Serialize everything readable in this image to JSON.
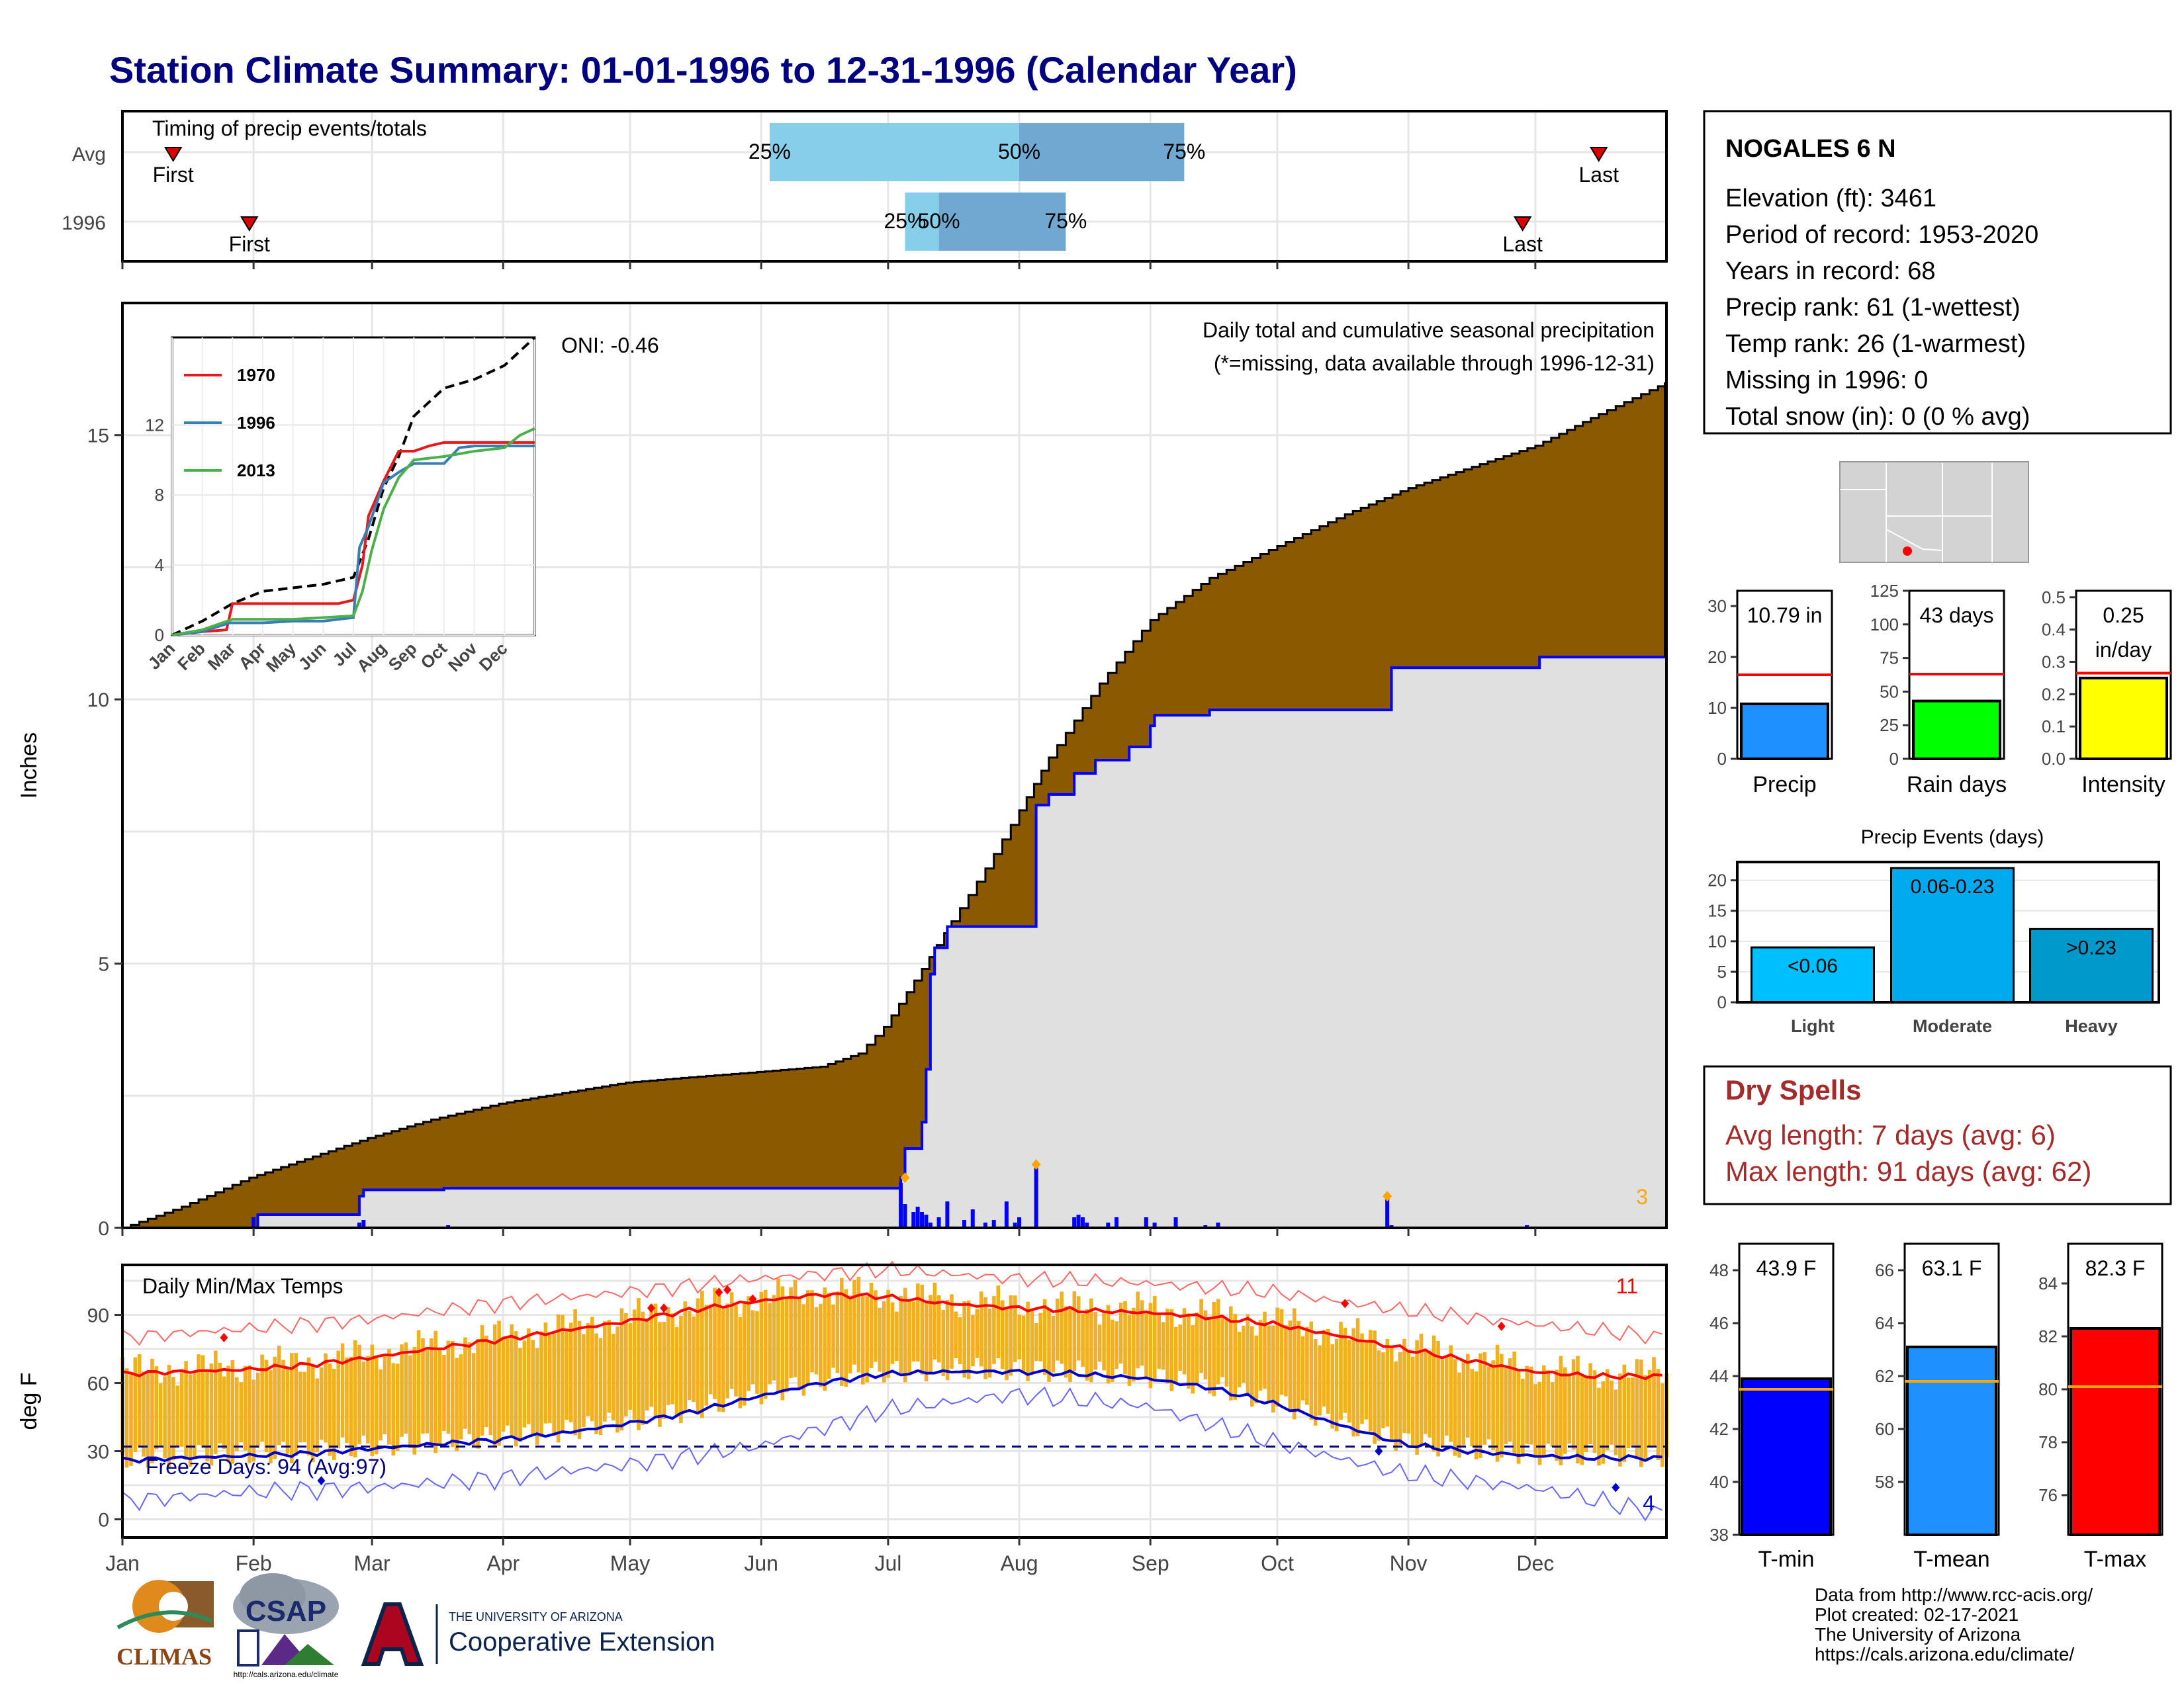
{
  "title": "Station Climate Summary: 01-01-1996 to 12-31-1996 (Calendar Year)",
  "colors": {
    "title": "#000080",
    "precip_fill": "#8B5A00",
    "observed_fill": "#e0e0e0",
    "observed_line": "#0000ff",
    "quartile_light": "#87ceeb",
    "quartile_dark": "#6fa8d0",
    "temp_bar": "#f0b020",
    "tmax": "#ff0000",
    "tmin": "#0000cc",
    "dry_spell_text": "#a52a2a",
    "missing_note": "#ff0000",
    "extreme_count": "#ffa500"
  },
  "months": [
    "Jan",
    "Feb",
    "Mar",
    "Apr",
    "May",
    "Jun",
    "Jul",
    "Aug",
    "Sep",
    "Oct",
    "Nov",
    "Dec"
  ],
  "timing": {
    "title": "Timing of precip events/totals",
    "rows": [
      {
        "label": "Avg",
        "first_label": "First",
        "last_label": "Last",
        "first_doy": 13,
        "last_doy": 350,
        "q25": 154,
        "q50": 213,
        "q75": 252,
        "q25_label": "25%",
        "q50_label": "50%",
        "q75_label": "75%"
      },
      {
        "label": "1996",
        "first_label": "First",
        "last_label": "Last",
        "first_doy": 31,
        "last_doy": 332,
        "q25": 186,
        "q50": 194,
        "q75": 224,
        "q25_label": "25%",
        "q50_label": "50%",
        "q75_label": "75%"
      }
    ]
  },
  "precip_panel": {
    "ylabel": "Inches",
    "yticks": [
      0,
      5,
      10,
      15
    ],
    "header": "Daily total and cumulative seasonal precipitation",
    "missing_note": "(*=missing, data available through 1996-12-31)",
    "oni": "ONI: -0.46",
    "extreme_count": "3"
  },
  "chart_data": [
    {
      "type": "area",
      "title": "Daily total and cumulative seasonal precipitation",
      "ylabel": "Inches",
      "ylim": [
        0,
        17.5
      ],
      "xlim_doy": [
        1,
        366
      ],
      "series": [
        {
          "name": "Avg cumulative",
          "x_doy": [
            1,
            15,
            31,
            46,
            59,
            74,
            90,
            105,
            120,
            135,
            151,
            166,
            175,
            181,
            190,
            197,
            205,
            213,
            220,
            232,
            244,
            258,
            274,
            290,
            305,
            320,
            335,
            350,
            366
          ],
          "values": [
            0,
            0.4,
            0.95,
            1.35,
            1.7,
            2.05,
            2.35,
            2.55,
            2.75,
            2.85,
            2.95,
            3.05,
            3.3,
            3.8,
            4.9,
            5.8,
            6.8,
            7.9,
            8.9,
            10.3,
            11.5,
            12.3,
            12.9,
            13.5,
            14.0,
            14.4,
            14.8,
            15.4,
            16.0
          ]
        },
        {
          "name": "1996 cumulative",
          "x_doy": [
            1,
            31,
            33,
            45,
            57,
            58,
            76,
            77,
            185,
            186,
            190,
            191,
            192,
            193,
            196,
            197,
            216,
            217,
            220,
            226,
            231,
            239,
            244,
            245,
            258,
            280,
            300,
            301,
            336,
            366
          ],
          "values": [
            0,
            0,
            0.25,
            0.25,
            0.6,
            0.72,
            0.72,
            0.75,
            0.95,
            1.5,
            2.0,
            3.0,
            4.8,
            5.3,
            5.7,
            5.7,
            5.7,
            8.0,
            8.2,
            8.6,
            8.85,
            9.1,
            9.5,
            9.7,
            9.8,
            9.8,
            9.8,
            10.6,
            10.8,
            10.8
          ]
        },
        {
          "name": "1996 daily",
          "x_doy": [
            32,
            57,
            58,
            78,
            185,
            186,
            188,
            189,
            190,
            191,
            192,
            194,
            196,
            200,
            202,
            205,
            207,
            210,
            212,
            213,
            217,
            226,
            227,
            228,
            229,
            234,
            236,
            243,
            245,
            250,
            257,
            260,
            300,
            301,
            333
          ],
          "values": [
            0.2,
            0.1,
            0.15,
            0.05,
            0.85,
            0.45,
            0.3,
            0.4,
            0.3,
            0.25,
            0.1,
            0.2,
            0.5,
            0.15,
            0.35,
            0.1,
            0.15,
            0.5,
            0.1,
            0.2,
            1.15,
            0.2,
            0.25,
            0.2,
            0.1,
            0.1,
            0.2,
            0.2,
            0.1,
            0.2,
            0.05,
            0.1,
            0.55,
            0.05,
            0.05
          ]
        }
      ]
    },
    {
      "type": "line",
      "title": "",
      "legend": [
        "1970",
        "1996",
        "2013"
      ],
      "yticks": [
        0,
        4,
        8,
        12
      ],
      "ylim": [
        0,
        17
      ],
      "xlabels": [
        "Jan",
        "Feb",
        "Mar",
        "Apr",
        "May",
        "Jun",
        "Jul",
        "Aug",
        "Sep",
        "Oct",
        "Nov",
        "Dec"
      ],
      "series": [
        {
          "name": "Avg",
          "x_month": [
            0,
            1,
            2,
            3,
            4,
            5,
            6,
            6.5,
            7,
            7.5,
            8,
            9,
            10,
            11,
            12
          ],
          "values": [
            0,
            0.8,
            1.8,
            2.5,
            2.7,
            2.9,
            3.3,
            5.5,
            8.4,
            10.2,
            12.5,
            14.1,
            14.6,
            15.4,
            17.0
          ]
        },
        {
          "name": "1970",
          "x_month": [
            0,
            1,
            1.8,
            2,
            2.5,
            3,
            4,
            5,
            5.5,
            6,
            6.3,
            6.5,
            7,
            7.5,
            8,
            8.5,
            9,
            10,
            11,
            12
          ],
          "values": [
            0,
            0.2,
            0.3,
            1.8,
            1.8,
            1.8,
            1.8,
            1.8,
            1.8,
            2.0,
            4.0,
            6.8,
            8.8,
            10.5,
            10.5,
            10.8,
            11.0,
            11.0,
            11.0,
            11.0
          ]
        },
        {
          "name": "1996",
          "x_month": [
            0,
            1,
            1.9,
            2.5,
            3,
            4,
            5,
            6,
            6.2,
            6.5,
            7,
            7.5,
            8,
            9,
            9.5,
            10,
            11,
            12
          ],
          "values": [
            0,
            0.2,
            0.7,
            0.7,
            0.7,
            0.8,
            0.8,
            1.0,
            5.0,
            6.2,
            8.7,
            9.3,
            9.8,
            9.8,
            10.7,
            10.8,
            10.8,
            10.8
          ]
        },
        {
          "name": "2013",
          "x_month": [
            0,
            1,
            2,
            3,
            4,
            5,
            6,
            6.3,
            6.6,
            7,
            7.5,
            8,
            9,
            10,
            11,
            11.5,
            12
          ],
          "values": [
            0,
            0.3,
            0.9,
            0.9,
            0.9,
            1.0,
            1.1,
            2.5,
            4.8,
            7.2,
            9.0,
            10.0,
            10.2,
            10.5,
            10.7,
            11.4,
            11.8
          ]
        }
      ]
    },
    {
      "type": "bar",
      "title": "Daily Min/Max Temps",
      "ylabel": "deg F",
      "ylim": [
        -8,
        112
      ],
      "yticks": [
        0,
        30,
        60,
        90
      ],
      "freeze_line": 32,
      "series": [
        {
          "name": "Avg Tmax",
          "x_doy": [
            1,
            15,
            31,
            45,
            59,
            74,
            90,
            105,
            120,
            135,
            151,
            166,
            181,
            196,
            212,
            227,
            243,
            258,
            273,
            288,
            304,
            319,
            334,
            349,
            366
          ],
          "values": [
            64,
            65,
            66,
            68,
            71,
            75,
            79,
            83,
            87,
            92,
            96,
            99,
            98,
            95,
            93,
            92,
            91,
            89,
            86,
            81,
            75,
            70,
            65,
            63,
            63
          ]
        },
        {
          "name": "Avg Tmin",
          "x_doy": [
            1,
            15,
            31,
            45,
            59,
            74,
            90,
            105,
            120,
            135,
            151,
            166,
            181,
            196,
            212,
            227,
            243,
            258,
            273,
            288,
            304,
            319,
            334,
            349,
            366
          ],
          "values": [
            26,
            27,
            28,
            29,
            31,
            33,
            35,
            38,
            42,
            47,
            54,
            60,
            64,
            65,
            65,
            64,
            62,
            58,
            51,
            42,
            33,
            30,
            28,
            27,
            27
          ]
        },
        {
          "name": "Record Tmax",
          "x_doy": [
            1,
            31,
            59,
            90,
            120,
            151,
            181,
            212,
            243,
            273,
            304,
            334,
            366
          ],
          "values": [
            80,
            84,
            88,
            95,
            100,
            106,
            110,
            106,
            104,
            100,
            92,
            86,
            80
          ]
        },
        {
          "name": "Record Tmin",
          "x_doy": [
            1,
            31,
            59,
            90,
            120,
            151,
            181,
            212,
            243,
            273,
            304,
            334,
            366
          ],
          "values": [
            8,
            12,
            14,
            18,
            24,
            32,
            48,
            55,
            50,
            34,
            20,
            14,
            2
          ]
        }
      ]
    },
    {
      "type": "bar",
      "title": "",
      "categories": [
        "Precip",
        "Rain days",
        "Intensity"
      ],
      "panels": [
        {
          "label": "Precip",
          "value": 10.79,
          "avg": 16.5,
          "ymax": 33,
          "yticks": [
            0,
            10,
            20,
            30
          ],
          "value_label": "10.79 in",
          "color": "#1e90ff"
        },
        {
          "label": "Rain days",
          "value": 43,
          "avg": 63,
          "ymax": 125,
          "yticks": [
            0,
            25,
            50,
            75,
            100,
            125
          ],
          "value_label": "43 days",
          "color": "#00ff00"
        },
        {
          "label": "Intensity",
          "value": 0.25,
          "avg": 0.265,
          "ymax": 0.52,
          "yticks": [
            0.0,
            0.1,
            0.2,
            0.3,
            0.4,
            0.5
          ],
          "value_label": "0.25",
          "value_label2": "in/day",
          "color": "#ffff00"
        }
      ]
    },
    {
      "type": "bar",
      "title": "Precip Events (days)",
      "categories": [
        "Light",
        "Moderate",
        "Heavy"
      ],
      "values": [
        9,
        22,
        12
      ],
      "bar_labels": [
        "<0.06",
        "0.06-0.23",
        ">0.23"
      ],
      "yticks": [
        0,
        5,
        10,
        15,
        20
      ],
      "ylim": [
        0,
        23
      ]
    },
    {
      "type": "bar",
      "title": "",
      "categories": [
        "T-min",
        "T-mean",
        "T-max"
      ],
      "panels": [
        {
          "label": "T-min",
          "value": 43.9,
          "avg": 43.5,
          "ymin": 38,
          "ymax": 49,
          "yticks": [
            38,
            40,
            42,
            44,
            46,
            48
          ],
          "value_label": "43.9 F",
          "color": "#0000ff"
        },
        {
          "label": "T-mean",
          "value": 63.1,
          "avg": 61.8,
          "ymin": 56,
          "ymax": 67,
          "yticks": [
            58,
            60,
            62,
            64,
            66
          ],
          "value_label": "63.1 F",
          "color": "#1e90ff"
        },
        {
          "label": "T-max",
          "value": 82.3,
          "avg": 80.1,
          "ymin": 74.5,
          "ymax": 85.5,
          "yticks": [
            76,
            78,
            80,
            82,
            84
          ],
          "value_label": "82.3 F",
          "color": "#ff0000"
        }
      ]
    }
  ],
  "temp_panel": {
    "title": "Daily Min/Max Temps",
    "ylabel": "deg F",
    "freeze_note": "Freeze Days: 94 (Avg:97)",
    "top_count": "11",
    "bottom_count": "4"
  },
  "station": {
    "name": "NOGALES 6 N",
    "lines": [
      "Elevation (ft): 3461",
      "Period of record: 1953-2020",
      "Years in record: 68",
      "Precip rank: 61 (1-wettest)",
      "Temp rank: 26 (1-warmest)",
      "Missing in 1996: 0",
      "Total snow (in): 0 (0 % avg)"
    ]
  },
  "dry_spells": {
    "title": "Dry Spells",
    "avg_line": "Avg length: 7 days (avg: 6)",
    "max_line": "Max length: 91 days (avg: 62)"
  },
  "footer": {
    "credits": [
      "Data from http://www.rcc-acis.org/",
      "Plot created: 02-17-2021",
      "The University of Arizona",
      "https://cals.arizona.edu/climate/"
    ],
    "logos": {
      "climas": "CLIMAS",
      "csap": "CSAP",
      "csap_url": "http://cals.arizona.edu/climate",
      "ua_line1": "THE UNIVERSITY OF ARIZONA",
      "ua_line2": "Cooperative Extension"
    }
  }
}
